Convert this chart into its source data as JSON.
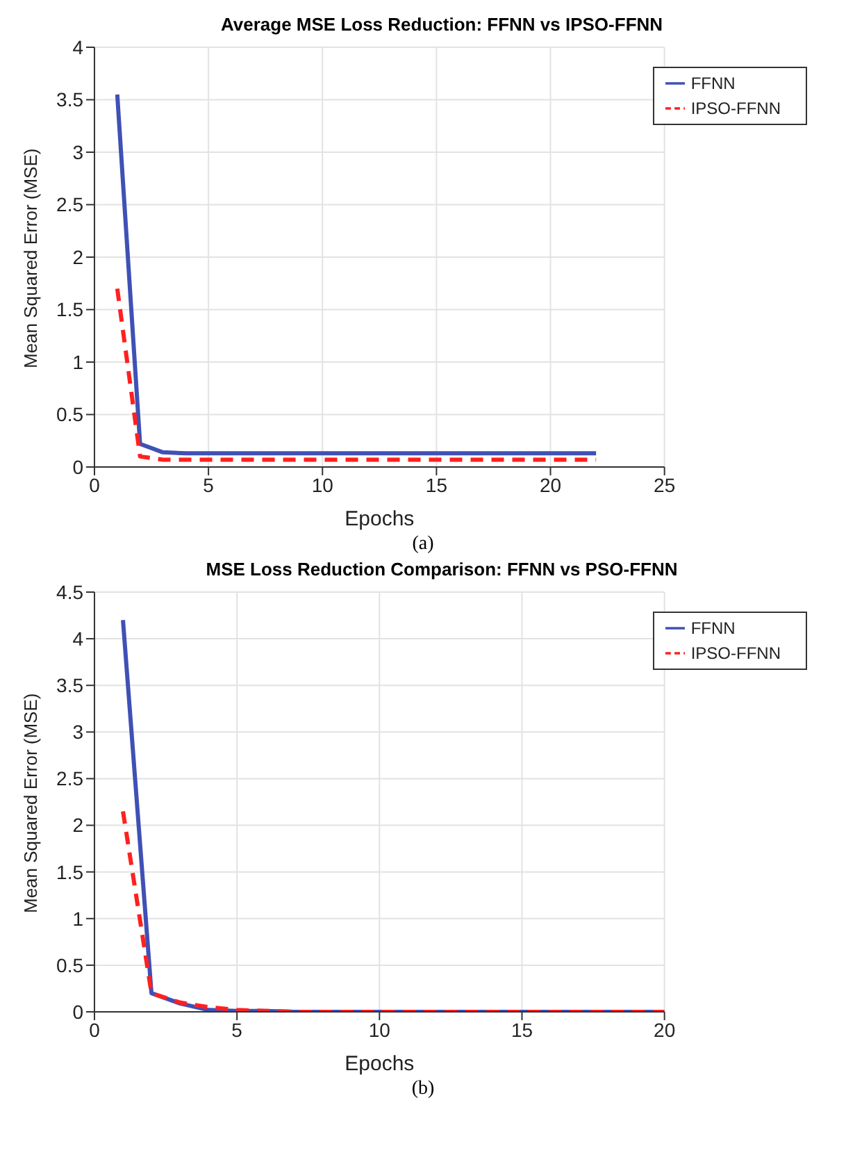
{
  "chart_data": [
    {
      "type": "line",
      "title": "Average MSE Loss Reduction: FFNN vs IPSO-FFNN",
      "xlabel": "Epochs",
      "ylabel": "Mean Squared Error (MSE)",
      "annotations": [
        "(a)"
      ],
      "x": [
        1,
        2,
        3,
        4,
        5,
        6,
        7,
        8,
        9,
        10,
        11,
        12,
        13,
        14,
        15,
        16,
        17,
        18,
        19,
        20,
        21,
        22
      ],
      "series": [
        {
          "name": "FFNN",
          "color": "#3f51b5",
          "line_style": "solid",
          "values": [
            3.55,
            0.22,
            0.14,
            0.13,
            0.13,
            0.13,
            0.13,
            0.13,
            0.13,
            0.13,
            0.13,
            0.13,
            0.13,
            0.13,
            0.13,
            0.13,
            0.13,
            0.13,
            0.13,
            0.13,
            0.13,
            0.13
          ]
        },
        {
          "name": "IPSO-FFNN",
          "color": "#ff2020",
          "line_style": "dashed",
          "values": [
            1.7,
            0.1,
            0.07,
            0.07,
            0.07,
            0.07,
            0.07,
            0.07,
            0.07,
            0.07,
            0.07,
            0.07,
            0.07,
            0.07,
            0.07,
            0.07,
            0.07,
            0.07,
            0.07,
            0.07,
            0.07,
            0.07
          ]
        }
      ],
      "xlim": [
        0,
        25
      ],
      "xticks": [
        0,
        5,
        10,
        15,
        20,
        25
      ],
      "ylim": [
        0,
        4
      ],
      "yticks": [
        0,
        0.5,
        1,
        1.5,
        2,
        2.5,
        3,
        3.5,
        4
      ],
      "grid": true,
      "legend": "top right",
      "marker": "none"
    },
    {
      "type": "line",
      "title": "MSE Loss Reduction Comparison: FFNN vs PSO-FFNN",
      "xlabel": "Epochs",
      "ylabel": "Mean Squared Error (MSE)",
      "annotations": [
        "(b)"
      ],
      "x": [
        1,
        2,
        3,
        4,
        5,
        6,
        7,
        8,
        9,
        10,
        11,
        12,
        13,
        14,
        15,
        16,
        17,
        18,
        19,
        20
      ],
      "series": [
        {
          "name": "FFNN",
          "color": "#3f51b5",
          "line_style": "solid",
          "values": [
            4.2,
            0.2,
            0.09,
            0.02,
            0.01,
            0.01,
            0,
            0,
            0,
            0,
            0,
            0,
            0,
            0,
            0,
            0,
            0,
            0,
            0,
            0
          ]
        },
        {
          "name": "IPSO-FFNN",
          "color": "#ff2020",
          "line_style": "dashed",
          "values": [
            2.15,
            0.2,
            0.1,
            0.05,
            0.02,
            0.01,
            0,
            0,
            0,
            0,
            0,
            0,
            0,
            0,
            0,
            0,
            0,
            0,
            0,
            0
          ]
        }
      ],
      "xlim": [
        0,
        20
      ],
      "xticks": [
        0,
        5,
        10,
        15,
        20
      ],
      "ylim": [
        0,
        4.5
      ],
      "yticks": [
        0,
        0.5,
        1,
        1.5,
        2,
        2.5,
        3,
        3.5,
        4,
        4.5
      ],
      "grid": true,
      "legend": "top right",
      "marker": "none"
    }
  ]
}
